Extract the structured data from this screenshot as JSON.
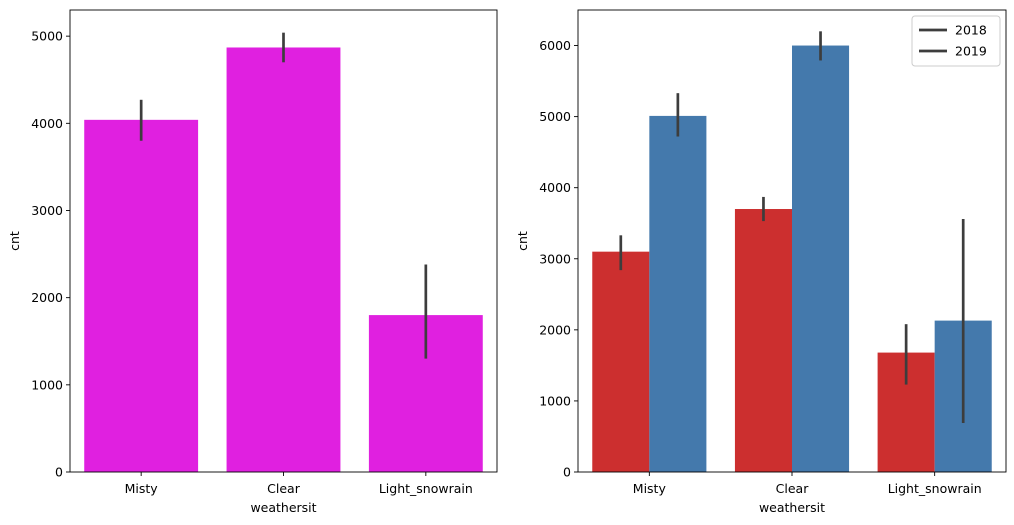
{
  "chart_data": [
    {
      "type": "bar",
      "categories": [
        "Misty",
        "Clear",
        "Light_snowrain"
      ],
      "values": [
        4040,
        4870,
        1800
      ],
      "error_low": [
        3800,
        4700,
        1300
      ],
      "error_high": [
        4270,
        5040,
        2380
      ],
      "color": "#e020e0",
      "xlabel": "weathersit",
      "ylabel": "cnt",
      "ylim": [
        0,
        5300
      ],
      "yticks": [
        0,
        1000,
        2000,
        3000,
        4000,
        5000
      ],
      "grid": false
    },
    {
      "type": "bar",
      "categories": [
        "Misty",
        "Clear",
        "Light_snowrain"
      ],
      "series": [
        {
          "name": "2018",
          "color": "#cc2f2f",
          "values": [
            3100,
            3700,
            1680
          ],
          "error_low": [
            2840,
            3530,
            1230
          ],
          "error_high": [
            3330,
            3870,
            2080
          ]
        },
        {
          "name": "2019",
          "color": "#4479ac",
          "values": [
            5010,
            6000,
            2130
          ],
          "error_low": [
            4720,
            5790,
            690
          ],
          "error_high": [
            5330,
            6200,
            3560
          ]
        }
      ],
      "xlabel": "weathersit",
      "ylabel": "cnt",
      "ylim": [
        0,
        6500
      ],
      "yticks": [
        0,
        1000,
        2000,
        3000,
        4000,
        5000,
        6000
      ],
      "legend": {
        "placement": "top-right",
        "entries": [
          "2018",
          "2019"
        ],
        "line_color": "#3d3d3d"
      },
      "grid": false
    }
  ]
}
